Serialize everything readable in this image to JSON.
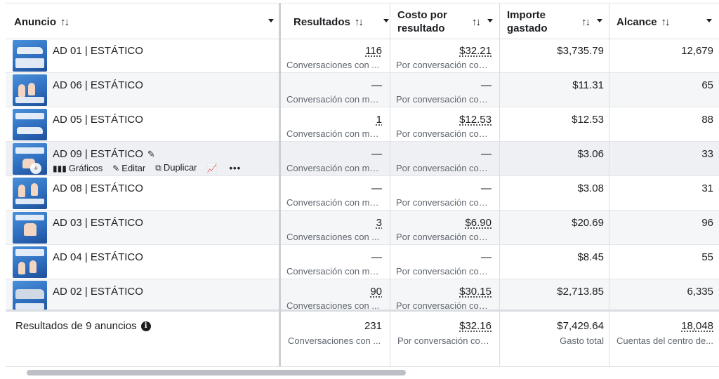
{
  "headers": {
    "anuncio": "Anuncio",
    "resultados": "Resultados",
    "costo_line1": "Costo por",
    "costo_line2": "resultado",
    "importe_line1": "Importe",
    "importe_line2": "gastado",
    "alcance": "Alcance",
    "sort_glyph": "↑↓"
  },
  "rows": [
    {
      "name": "AD 01 | ESTÁTICO",
      "resultados": "116",
      "resultados_sub": "Conversaciones con ...",
      "costo": "$32.21",
      "costo_sub": "Por conversación con...",
      "importe": "$3,735.79",
      "alcance": "12,679"
    },
    {
      "name": "AD 06 | ESTÁTICO",
      "resultados": "—",
      "resultados_sub": "Conversación con me...",
      "costo": "—",
      "costo_sub": "Por conversación con ...",
      "importe": "$11.31",
      "alcance": "65"
    },
    {
      "name": "AD 05 | ESTÁTICO",
      "resultados": "1",
      "resultados_sub": "Conversación con me...",
      "costo": "$12.53",
      "costo_sub": "Por conversación con...",
      "importe": "$12.53",
      "alcance": "88"
    },
    {
      "name": "AD 09 | ESTÁTICO",
      "resultados": "—",
      "resultados_sub": "Conversación con me...",
      "costo": "—",
      "costo_sub": "Por conversación con ...",
      "importe": "$3.06",
      "alcance": "33"
    },
    {
      "name": "AD 08 | ESTÁTICO",
      "resultados": "—",
      "resultados_sub": "Conversación con me...",
      "costo": "—",
      "costo_sub": "Por conversación con ...",
      "importe": "$3.08",
      "alcance": "31"
    },
    {
      "name": "AD 03 | ESTÁTICO",
      "resultados": "3",
      "resultados_sub": "Conversaciones con ...",
      "costo": "$6.90",
      "costo_sub": "Por conversación con...",
      "importe": "$20.69",
      "alcance": "96"
    },
    {
      "name": "AD 04 | ESTÁTICO",
      "resultados": "—",
      "resultados_sub": "Conversación con me...",
      "costo": "—",
      "costo_sub": "Por conversación con ...",
      "importe": "$8.45",
      "alcance": "55"
    },
    {
      "name": "AD 02 | ESTÁTICO",
      "resultados": "90",
      "resultados_sub": "Conversaciones con ...",
      "costo": "$30.15",
      "costo_sub": "Por conversación con...",
      "importe": "$2,713.85",
      "alcance": "6,335"
    }
  ],
  "row_actions": {
    "graficos": "Gráficos",
    "editar": "Editar",
    "duplicar": "Duplicar",
    "more": "•••"
  },
  "footer": {
    "title": "Resultados de 9 anuncios",
    "resultados": "231",
    "resultados_sub": "Conversaciones con ...",
    "costo": "$32.16",
    "costo_sub": "Por conversación con...",
    "importe": "$7,429.64",
    "importe_sub": "Gasto total",
    "alcance": "18,048",
    "alcance_sub": "Cuentas del centro de..."
  },
  "colors": {
    "row_alt": "#f5f6f7",
    "text": "#1c1e21",
    "subtext": "#606770",
    "thumb_blue": "#2f6fc0"
  },
  "icons": [
    "sort-icon",
    "dropdown-caret-icon",
    "pencil-icon",
    "bar-chart-icon",
    "copy-icon",
    "trend-chart-icon",
    "more-icon",
    "info-icon",
    "zoom-icon"
  ]
}
